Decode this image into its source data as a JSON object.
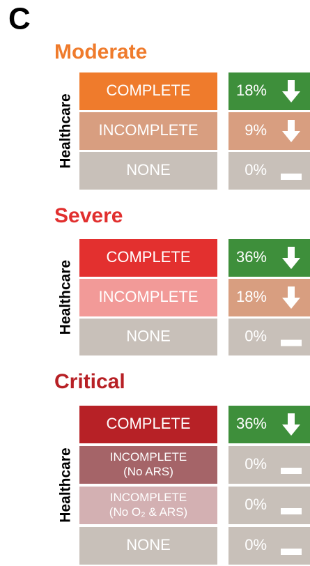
{
  "panel_label": "C",
  "sections": [
    {
      "title": "Moderate",
      "color": "#ef7b2c",
      "side_label": "Healthcare",
      "rows": [
        {
          "label": [
            "COMPLETE"
          ],
          "color": "#ef7b2c",
          "value": "18%",
          "value_color": "#3e8f3b",
          "arrow": true
        },
        {
          "label": [
            "INCOMPLETE"
          ],
          "color": "#d89e80",
          "value": "9%",
          "value_color": "#d89e80",
          "arrow": true
        },
        {
          "label": [
            "NONE"
          ],
          "color": "#c8c0b9",
          "value": "0%",
          "value_color": "#c8c0b9",
          "arrow": false
        }
      ]
    },
    {
      "title": "Severe",
      "color": "#e12f2e",
      "side_label": "Healthcare",
      "rows": [
        {
          "label": [
            "COMPLETE"
          ],
          "color": "#e3302f",
          "value": "36%",
          "value_color": "#3e8f3b",
          "arrow": true
        },
        {
          "label": [
            "INCOMPLETE"
          ],
          "color": "#f29a98",
          "value": "18%",
          "value_color": "#d89e80",
          "arrow": true
        },
        {
          "label": [
            "NONE"
          ],
          "color": "#c8c0b9",
          "value": "0%",
          "value_color": "#c8c0b9",
          "arrow": false
        }
      ]
    },
    {
      "title": "Critical",
      "color": "#b72025",
      "side_label": "Healthcare",
      "rows": [
        {
          "label": [
            "COMPLETE"
          ],
          "color": "#b72126",
          "value": "36%",
          "value_color": "#3e8f3b",
          "arrow": true
        },
        {
          "label": [
            "INCOMPLETE",
            "(No ARS)"
          ],
          "color": "#a56468",
          "value": "0%",
          "value_color": "#c8c0b9",
          "arrow": false
        },
        {
          "label": [
            "INCOMPLETE",
            "(No O₂ & ARS)"
          ],
          "color": "#d3b0b2",
          "value": "0%",
          "value_color": "#c8c0b9",
          "arrow": false
        },
        {
          "label": [
            "NONE"
          ],
          "color": "#c8c0b9",
          "value": "0%",
          "value_color": "#c8c0b9",
          "arrow": false
        }
      ]
    }
  ]
}
